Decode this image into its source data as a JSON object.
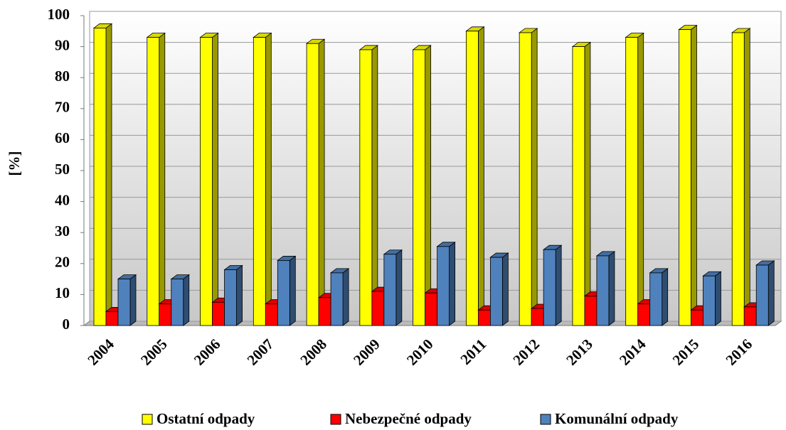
{
  "chart_data": {
    "type": "bar3d",
    "ylabel": "[%]",
    "categories": [
      "2004",
      "2005",
      "2006",
      "2007",
      "2008",
      "2009",
      "2010",
      "2011",
      "2012",
      "2013",
      "2014",
      "2015",
      "2016"
    ],
    "series": [
      {
        "name": "Ostatní odpady",
        "color": "#ffff00",
        "values": [
          96,
          93,
          93,
          93,
          91,
          89,
          89,
          95,
          94.5,
          90,
          93,
          95.5,
          94.5
        ]
      },
      {
        "name": "Nebezpečné odpady",
        "color": "#ff0000",
        "values": [
          4.5,
          7,
          7.5,
          7,
          9,
          11,
          10.5,
          5,
          5.5,
          9.5,
          7,
          5,
          6
        ]
      },
      {
        "name": "Komunální odpady",
        "color": "#4f81bd",
        "values": [
          15,
          15,
          18,
          21,
          17,
          23,
          25.5,
          22,
          24.5,
          22.5,
          17,
          16,
          19.5
        ]
      }
    ],
    "ylim": [
      0,
      100
    ],
    "yticks": [
      0,
      10,
      20,
      30,
      40,
      50,
      60,
      70,
      80,
      90,
      100
    ],
    "grid": true,
    "legend": "bottom"
  }
}
